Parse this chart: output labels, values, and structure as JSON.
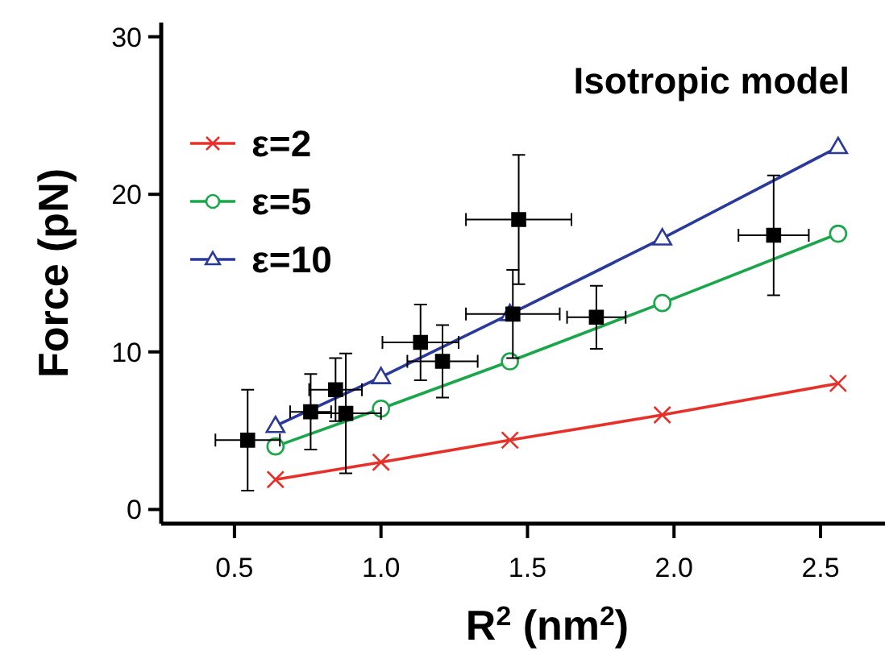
{
  "chart_data": {
    "type": "line",
    "xlabel": "R$^{2}$ (nm$^{2}$)",
    "ylabel": "Force (pN)",
    "annotations": [
      "Isotropic model"
    ],
    "xlim": [
      0.25,
      2.72
    ],
    "ylim": [
      -0.9,
      30.9
    ],
    "xticks": [
      0.5,
      {
        "value": 1,
        "label": "1.0"
      },
      1.5,
      {
        "value": 2,
        "label": "2.0"
      },
      2.5
    ],
    "yticks": [
      0,
      10,
      20,
      30
    ],
    "grid": false,
    "legend": "top left",
    "line_style": "solid",
    "series": [
      {
        "name": "ε=2",
        "color": "#e8302a",
        "marker": "cross",
        "x": [
          0.64,
          1.0,
          1.44,
          1.96,
          2.56
        ],
        "values": [
          1.9,
          3.0,
          4.4,
          6.0,
          8.0
        ]
      },
      {
        "name": "ε=5",
        "color": "#1aa64a",
        "marker": "circle",
        "x": [
          0.64,
          1.0,
          1.44,
          1.96,
          2.56
        ],
        "values": [
          4.0,
          6.4,
          9.4,
          13.1,
          17.5
        ]
      },
      {
        "name": "ε=10",
        "color": "#2a3a9a",
        "marker": "triangle",
        "x": [
          0.64,
          1.0,
          1.44,
          1.96,
          2.56
        ],
        "values": [
          5.3,
          8.4,
          12.4,
          17.2,
          23.0
        ]
      },
      {
        "type": "scatter",
        "color": "#000000",
        "marker": "square",
        "x": [
          0.545,
          0.76,
          0.845,
          0.88,
          1.135,
          1.21,
          1.47,
          1.45,
          1.735,
          2.34
        ],
        "values": [
          4.4,
          6.2,
          7.6,
          6.1,
          10.6,
          9.4,
          18.4,
          12.4,
          12.2,
          17.4
        ],
        "errors": [
          3.2,
          2.4,
          2.0,
          3.8,
          2.4,
          2.3,
          4.1,
          2.8,
          2.0,
          3.8
        ],
        "xerrors": [
          0.11,
          0.07,
          0.09,
          0.12,
          0.13,
          0.12,
          0.18,
          0.16,
          0.1,
          0.12
        ]
      }
    ]
  }
}
